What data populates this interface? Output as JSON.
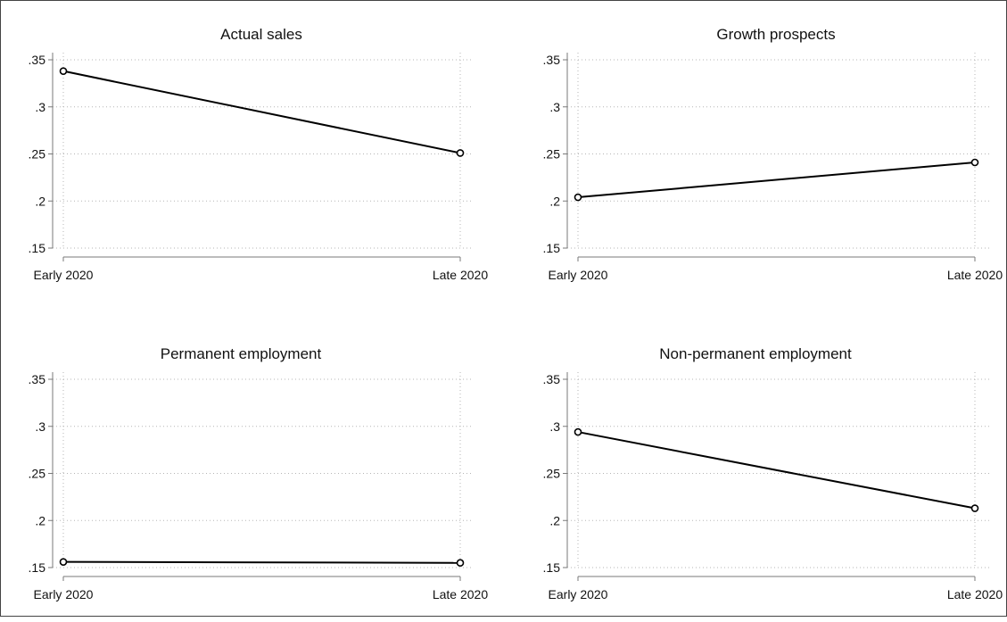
{
  "chart_data": [
    {
      "type": "line",
      "title": "Actual sales",
      "categories": [
        "Early 2020",
        "Late 2020"
      ],
      "values": [
        0.338,
        0.251
      ],
      "ylim": [
        0.15,
        0.35
      ],
      "yticks": [
        0.15,
        0.2,
        0.25,
        0.3,
        0.35
      ],
      "ytick_labels": [
        ".15",
        ".2",
        ".25",
        ".3",
        ".35"
      ],
      "grid": true,
      "marker": "hollow-circle",
      "line_color": "#000000"
    },
    {
      "type": "line",
      "title": "Growth prospects",
      "categories": [
        "Early 2020",
        "Late 2020"
      ],
      "values": [
        0.204,
        0.241
      ],
      "ylim": [
        0.15,
        0.35
      ],
      "yticks": [
        0.15,
        0.2,
        0.25,
        0.3,
        0.35
      ],
      "ytick_labels": [
        ".15",
        ".2",
        ".25",
        ".3",
        ".35"
      ],
      "grid": true,
      "marker": "hollow-circle",
      "line_color": "#000000"
    },
    {
      "type": "line",
      "title": "Permanent employment",
      "categories": [
        "Early 2020",
        "Late 2020"
      ],
      "values": [
        0.156,
        0.155
      ],
      "ylim": [
        0.15,
        0.35
      ],
      "yticks": [
        0.15,
        0.2,
        0.25,
        0.3,
        0.35
      ],
      "ytick_labels": [
        ".15",
        ".2",
        ".25",
        ".3",
        ".35"
      ],
      "grid": true,
      "marker": "hollow-circle",
      "line_color": "#000000"
    },
    {
      "type": "line",
      "title": "Non-permanent employment",
      "categories": [
        "Early 2020",
        "Late 2020"
      ],
      "values": [
        0.294,
        0.213
      ],
      "ylim": [
        0.15,
        0.35
      ],
      "yticks": [
        0.15,
        0.2,
        0.25,
        0.3,
        0.35
      ],
      "ytick_labels": [
        ".15",
        ".2",
        ".25",
        ".3",
        ".35"
      ],
      "grid": true,
      "marker": "hollow-circle",
      "line_color": "#000000"
    }
  ]
}
